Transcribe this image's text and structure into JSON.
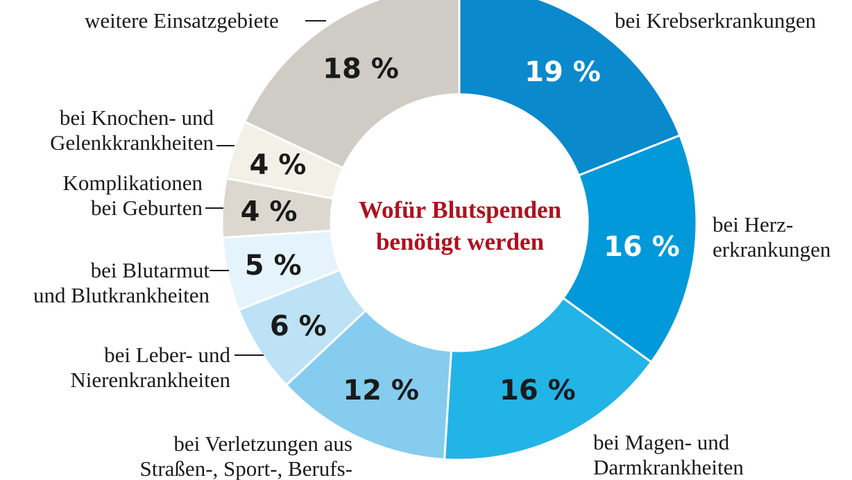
{
  "chart_data": {
    "type": "pie",
    "variant": "donut",
    "title": "Wofür Blutspenden benötigt werden",
    "unit": "%",
    "slices": [
      {
        "label": "bei Krebserkrankungen",
        "value": 19,
        "display": "19 %",
        "color": "#0a89cc",
        "text_color": "#ffffff"
      },
      {
        "label": "bei Herzerkrankungen",
        "value": 16,
        "display": "16 %",
        "color": "#0199da",
        "text_color": "#ffffff"
      },
      {
        "label": "bei Magen- und Darmkrankheiten",
        "value": 16,
        "display": "16 %",
        "color": "#22b4e6",
        "text_color": "#1a1a1a"
      },
      {
        "label": "bei Verletzungen aus Straßen-, Sport-, Berufs-",
        "value": 12,
        "display": "12 %",
        "color": "#86ccee",
        "text_color": "#1a1a1a"
      },
      {
        "label": "bei Leber- und Nierenkrankheiten",
        "value": 6,
        "display": "6 %",
        "color": "#bde2f5",
        "text_color": "#1a1a1a"
      },
      {
        "label": "bei Blutarmut und Blutkrankheiten",
        "value": 5,
        "display": "5 %",
        "color": "#e5f4fc",
        "text_color": "#1a1a1a"
      },
      {
        "label": "Komplikationen bei Geburten",
        "value": 4,
        "display": "4 %",
        "color": "#dcd8d0",
        "text_color": "#1a1a1a"
      },
      {
        "label": "bei Knochen- und Gelenkkrankheiten",
        "value": 4,
        "display": "4 %",
        "color": "#f2f0e7",
        "text_color": "#1a1a1a"
      },
      {
        "label": "weitere Einsatzgebiete",
        "value": 18,
        "display": "18 %",
        "color": "#cfccc6",
        "text_color": "#1a1a1a"
      }
    ]
  },
  "labels": {
    "krebs": "bei Krebserkrankungen",
    "herz1": "bei Herz-",
    "herz2": "erkrankungen",
    "magen1": "bei Magen- und",
    "magen2": "Darmkrankheiten",
    "verl1": "bei Verletzungen aus",
    "verl2": "Straßen-, Sport-, Berufs-",
    "leber1": "bei Leber- und",
    "leber2": "Nierenkrankheiten",
    "blut1": "bei Blutarmut",
    "blut2": "und Blutkrankheiten",
    "geb1": "Komplikationen",
    "geb2": "bei Geburten",
    "kno1": "bei Knochen- und",
    "kno2": "Gelenkkrankheiten",
    "weitere": "weitere Einsatzgebiete"
  },
  "title_lines": [
    "Wofür Blutspenden",
    "benötigt werden"
  ]
}
